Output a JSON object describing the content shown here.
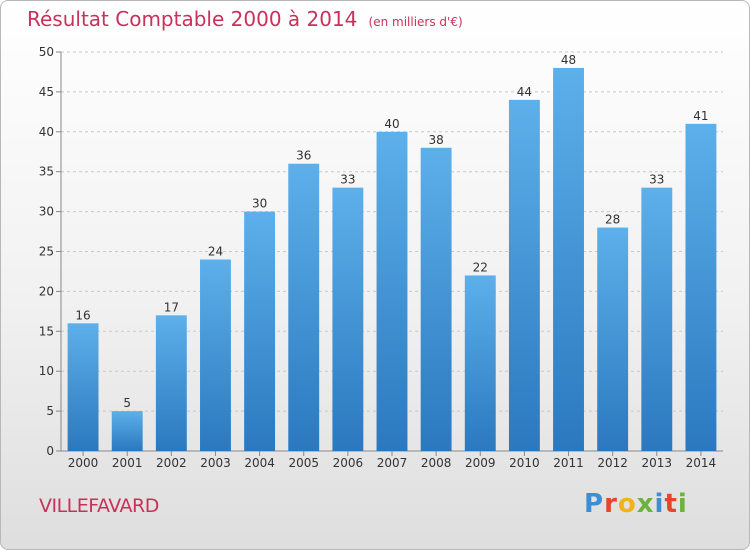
{
  "title": "Résultat Comptable 2000 à 2014",
  "subtitle": "(en milliers d'€)",
  "commune": "VILLEFAVARD",
  "logo": {
    "text": "Proxiti",
    "letters": [
      {
        "ch": "P",
        "color": "#3b8fd6"
      },
      {
        "ch": "r",
        "color": "#e6452b"
      },
      {
        "ch": "o",
        "color": "#f2b21b"
      },
      {
        "ch": "x",
        "color": "#6bb33a"
      },
      {
        "ch": "i",
        "color": "#3b8fd6"
      },
      {
        "ch": "t",
        "color": "#e6452b"
      },
      {
        "ch": "i",
        "color": "#6bb33a"
      }
    ]
  },
  "colors": {
    "bar_top": "#5db0ea",
    "bar_bottom": "#2b78bf",
    "title": "#c8325a"
  },
  "chart_data": {
    "type": "bar",
    "categories": [
      "2000",
      "2001",
      "2002",
      "2003",
      "2004",
      "2005",
      "2006",
      "2007",
      "2008",
      "2009",
      "2010",
      "2011",
      "2012",
      "2013",
      "2014"
    ],
    "values": [
      16,
      5,
      17,
      24,
      30,
      36,
      33,
      40,
      38,
      22,
      44,
      48,
      28,
      33,
      41
    ],
    "ylim": [
      0,
      50
    ],
    "yticks": [
      0,
      5,
      10,
      15,
      20,
      25,
      30,
      35,
      40,
      45,
      50
    ],
    "grid": true,
    "data_labels": true
  }
}
